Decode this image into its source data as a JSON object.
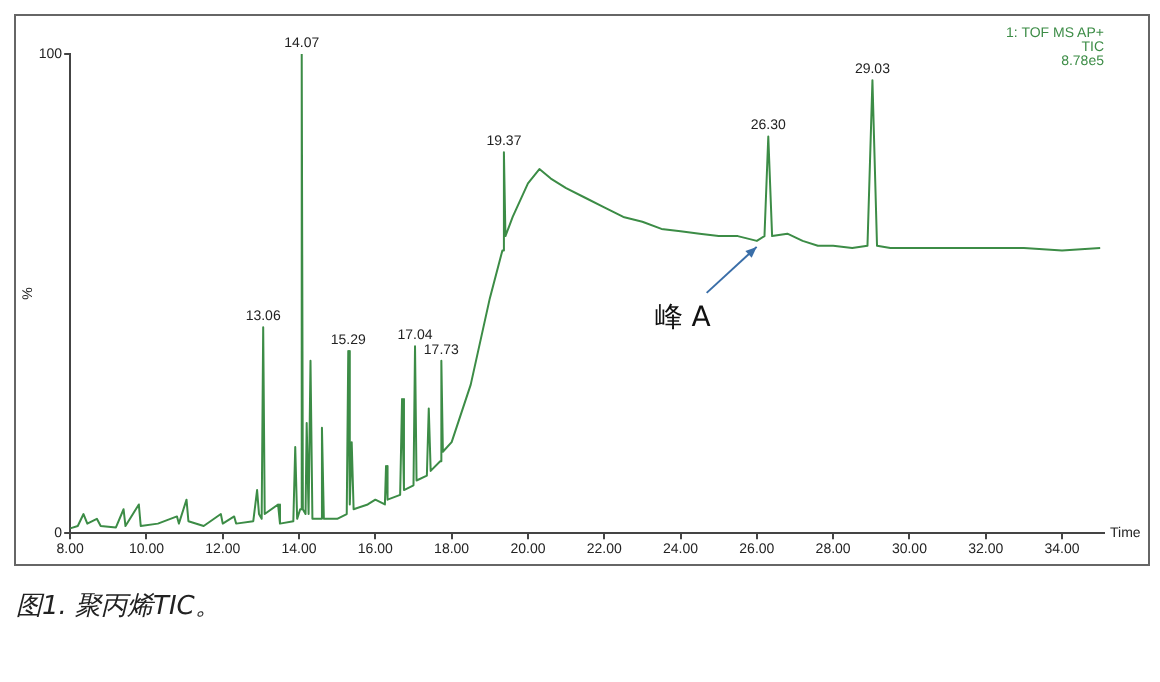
{
  "chart_data": {
    "type": "line",
    "title": "图1. 聚丙烯TIC。",
    "ylabel": "%",
    "xlabel": "Time",
    "annotations": [
      {
        "text": "13.06",
        "x": 13.06,
        "y": 43
      },
      {
        "text": "14.07",
        "x": 14.07,
        "y": 100
      },
      {
        "text": "15.29",
        "x": 15.29,
        "y": 38
      },
      {
        "text": "17.04",
        "x": 17.04,
        "y": 39
      },
      {
        "text": "17.73",
        "x": 17.73,
        "y": 36
      },
      {
        "text": "19.37",
        "x": 19.37,
        "y": 79.5
      },
      {
        "text": "26.30",
        "x": 26.3,
        "y": 82.8
      },
      {
        "text": "29.03",
        "x": 29.03,
        "y": 94.5
      },
      "1: TOF MS AP+",
      "TIC",
      "8.78e5",
      {
        "text": "峰 A",
        "x": 26.1,
        "y": 61
      }
    ],
    "xlim": [
      8,
      35.1
    ],
    "xticks": [
      {
        "value": 8,
        "label": "8.00"
      },
      {
        "value": 10,
        "label": "10.00"
      },
      {
        "value": 12,
        "label": "12.00"
      },
      {
        "value": 14,
        "label": "14.00"
      },
      {
        "value": 16,
        "label": "16.00"
      },
      {
        "value": 18,
        "label": "18.00"
      },
      {
        "value": 20,
        "label": "20.00"
      },
      {
        "value": 22,
        "label": "22.00"
      },
      {
        "value": 24,
        "label": "24.00"
      },
      {
        "value": 26,
        "label": "26.00"
      },
      {
        "value": 28,
        "label": "28.00"
      },
      {
        "value": 30,
        "label": "30.00"
      },
      {
        "value": 32,
        "label": "32.00"
      },
      {
        "value": 34,
        "label": "34.00"
      }
    ],
    "ylim": [
      0,
      100
    ],
    "yticks": [
      0,
      100
    ],
    "grid": false,
    "legend": false,
    "marker": "none",
    "line_style": "solid",
    "series": [
      {
        "color": "#3c8c46",
        "x": [
          8.0,
          8.2,
          8.35,
          8.45,
          8.7,
          8.8,
          9.2,
          9.4,
          9.45,
          9.8,
          9.85,
          10.3,
          10.8,
          10.85,
          11.05,
          11.1,
          11.5,
          11.95,
          12.0,
          12.3,
          12.35,
          12.8,
          12.9,
          12.95,
          13.02,
          13.06,
          13.1,
          13.45,
          13.5,
          13.85,
          13.9,
          13.95,
          14.03,
          14.07,
          14.1,
          14.17,
          14.2,
          14.25,
          14.3,
          14.35,
          14.55,
          14.6,
          14.65,
          15.0,
          15.25,
          15.29,
          15.33,
          15.38,
          15.43,
          15.8,
          16.0,
          16.25,
          16.28,
          16.32,
          16.65,
          16.7,
          16.75,
          17.0,
          17.04,
          17.08,
          17.35,
          17.4,
          17.45,
          17.7,
          17.73,
          17.77,
          18.0,
          18.5,
          19.0,
          19.33,
          19.37,
          19.41,
          19.6,
          20.0,
          20.3,
          20.6,
          21.0,
          21.5,
          22.0,
          22.5,
          23.0,
          23.5,
          24.0,
          24.5,
          25.0,
          25.5,
          26.0,
          26.2,
          26.3,
          26.4,
          26.8,
          27.2,
          27.6,
          28.0,
          28.5,
          28.9,
          29.03,
          29.15,
          29.5,
          30.0,
          31.0,
          32.0,
          33.0,
          34.0,
          35.0
        ],
        "values": [
          1,
          1.5,
          4,
          2,
          3,
          1.5,
          1.2,
          5,
          1.5,
          6,
          1.5,
          2,
          3.5,
          2,
          7,
          2.5,
          1.5,
          4,
          2,
          3.5,
          2,
          2.5,
          9,
          4,
          3,
          43,
          4,
          6,
          2,
          2.5,
          18,
          3,
          5,
          100,
          5,
          4,
          23,
          4,
          36,
          3,
          3,
          22,
          3,
          3,
          4,
          38,
          6,
          19,
          5,
          6,
          7,
          6,
          14,
          7,
          8,
          28,
          9,
          10,
          39,
          11,
          12,
          26,
          13,
          15,
          36,
          17,
          19,
          31,
          49,
          59,
          79.5,
          62,
          66,
          73,
          76,
          74,
          72,
          70,
          68,
          66,
          65,
          63.5,
          63,
          62.5,
          62,
          62,
          61,
          62,
          82.8,
          62,
          62.5,
          61,
          60,
          60,
          59.5,
          60,
          94.5,
          60,
          59.5,
          59.5,
          59.5,
          59.5,
          59.5,
          59,
          59.5
        ]
      }
    ]
  }
}
